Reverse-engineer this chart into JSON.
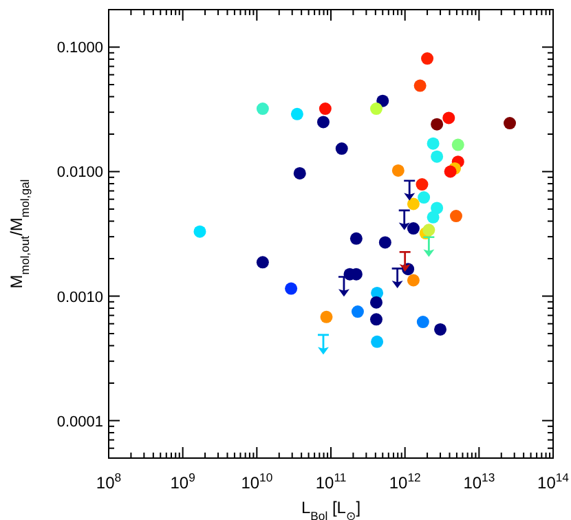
{
  "chart_data": {
    "type": "scatter",
    "xlabel": "L$_{Bol}$ [L$_{⊙}$]",
    "ylabel": "M$_{mol,out}$/M$_{mol,gal}$",
    "log": "xy",
    "xlim": [
      100000000.0,
      100000000000000.0
    ],
    "ylim": [
      5e-05,
      0.2
    ],
    "xticks": [
      {
        "value": 100000000.0,
        "label": "10$^{8}$"
      },
      {
        "value": 200000000.0,
        "label": null
      },
      {
        "value": 300000000.0,
        "label": null
      },
      {
        "value": 400000000.0,
        "label": null
      },
      {
        "value": 500000000.0,
        "label": null
      },
      {
        "value": 600000000.0,
        "label": null
      },
      {
        "value": 700000000.0,
        "label": null
      },
      {
        "value": 800000000.0,
        "label": null
      },
      {
        "value": 900000000.0,
        "label": null
      },
      {
        "value": 1000000000.0,
        "label": "10$^{9}$"
      },
      {
        "value": 2000000000.0,
        "label": null
      },
      {
        "value": 3000000000.0,
        "label": null
      },
      {
        "value": 4000000000.0,
        "label": null
      },
      {
        "value": 5000000000.0,
        "label": null
      },
      {
        "value": 6000000000.0,
        "label": null
      },
      {
        "value": 7000000000.0,
        "label": null
      },
      {
        "value": 8000000000.0,
        "label": null
      },
      {
        "value": 9000000000.0,
        "label": null
      },
      {
        "value": 10000000000.0,
        "label": "10$^{10}$"
      },
      {
        "value": 20000000000.0,
        "label": null
      },
      {
        "value": 30000000000.0,
        "label": null
      },
      {
        "value": 40000000000.0,
        "label": null
      },
      {
        "value": 50000000000.0,
        "label": null
      },
      {
        "value": 60000000000.0,
        "label": null
      },
      {
        "value": 70000000000.0,
        "label": null
      },
      {
        "value": 80000000000.0,
        "label": null
      },
      {
        "value": 90000000000.0,
        "label": null
      },
      {
        "value": 100000000000.0,
        "label": "10$^{11}$"
      },
      {
        "value": 200000000000.0,
        "label": null
      },
      {
        "value": 300000000000.0,
        "label": null
      },
      {
        "value": 400000000000.0,
        "label": null
      },
      {
        "value": 500000000000.0,
        "label": null
      },
      {
        "value": 600000000000.0,
        "label": null
      },
      {
        "value": 700000000000.0,
        "label": null
      },
      {
        "value": 800000000000.0,
        "label": null
      },
      {
        "value": 900000000000.0,
        "label": null
      },
      {
        "value": 1000000000000.0,
        "label": "10$^{12}$"
      },
      {
        "value": 2000000000000.0,
        "label": null
      },
      {
        "value": 3000000000000.0,
        "label": null
      },
      {
        "value": 4000000000000.0,
        "label": null
      },
      {
        "value": 5000000000000.0,
        "label": null
      },
      {
        "value": 6000000000000.0,
        "label": null
      },
      {
        "value": 7000000000000.0,
        "label": null
      },
      {
        "value": 8000000000000.0,
        "label": null
      },
      {
        "value": 9000000000000.0,
        "label": null
      },
      {
        "value": 10000000000000.0,
        "label": "10$^{13}$"
      },
      {
        "value": 20000000000000.0,
        "label": null
      },
      {
        "value": 30000000000000.0,
        "label": null
      },
      {
        "value": 40000000000000.0,
        "label": null
      },
      {
        "value": 50000000000000.0,
        "label": null
      },
      {
        "value": 60000000000000.0,
        "label": null
      },
      {
        "value": 70000000000000.0,
        "label": null
      },
      {
        "value": 80000000000000.0,
        "label": null
      },
      {
        "value": 90000000000000.0,
        "label": null
      },
      {
        "value": 100000000000000.0,
        "label": "10$^{14}$"
      }
    ],
    "yticks": [
      {
        "value": 5e-05,
        "label": null
      },
      {
        "value": 6e-05,
        "label": null
      },
      {
        "value": 7e-05,
        "label": null
      },
      {
        "value": 8e-05,
        "label": null
      },
      {
        "value": 9e-05,
        "label": null
      },
      {
        "value": 0.0001,
        "label": "0.0001"
      },
      {
        "value": 0.0002,
        "label": null
      },
      {
        "value": 0.0003,
        "label": null
      },
      {
        "value": 0.0004,
        "label": null
      },
      {
        "value": 0.0005,
        "label": null
      },
      {
        "value": 0.0006,
        "label": null
      },
      {
        "value": 0.0007,
        "label": null
      },
      {
        "value": 0.0008,
        "label": null
      },
      {
        "value": 0.0009,
        "label": null
      },
      {
        "value": 0.001,
        "label": "0.0010"
      },
      {
        "value": 0.002,
        "label": null
      },
      {
        "value": 0.003,
        "label": null
      },
      {
        "value": 0.004,
        "label": null
      },
      {
        "value": 0.005,
        "label": null
      },
      {
        "value": 0.006,
        "label": null
      },
      {
        "value": 0.007,
        "label": null
      },
      {
        "value": 0.008,
        "label": null
      },
      {
        "value": 0.009,
        "label": null
      },
      {
        "value": 0.01,
        "label": "0.0100"
      },
      {
        "value": 0.02,
        "label": null
      },
      {
        "value": 0.03,
        "label": null
      },
      {
        "value": 0.04,
        "label": null
      },
      {
        "value": 0.05,
        "label": null
      },
      {
        "value": 0.06,
        "label": null
      },
      {
        "value": 0.07,
        "label": null
      },
      {
        "value": 0.08,
        "label": null
      },
      {
        "value": 0.09,
        "label": null
      },
      {
        "value": 0.1,
        "label": "0.1000"
      },
      {
        "value": 0.2,
        "label": null
      }
    ],
    "series": [
      {
        "marker": "circle",
        "x": [
          12000000000.0,
          35000000000.0,
          84000000000.0,
          79000000000.0,
          38000000000.0,
          1700000000.0,
          2000000000000.0,
          1600000000000.0,
          500000000000.0,
          410000000000.0,
          3900000000000.0,
          2700000000000.0,
          26000000000000.0,
          140000000000.0,
          2400000000000.0,
          5200000000000.0,
          2700000000000.0,
          5200000000000.0,
          4700000000000.0,
          4100000000000.0,
          810000000000.0,
          1700000000000.0,
          1800000000000.0,
          1300000000000.0,
          2700000000000.0,
          2400000000000.0,
          4900000000000.0,
          1300000000000.0,
          1900000000000.0,
          2100000000000.0,
          220000000000.0,
          540000000000.0,
          12000000000.0,
          29000000000.0,
          87000000000.0,
          1100000000000.0,
          1300000000000.0,
          180000000000.0,
          220000000000.0,
          420000000000.0,
          410000000000.0,
          230000000000.0,
          410000000000.0,
          1750000000000.0,
          3000000000000.0,
          420000000000.0
        ],
        "values": [
          0.032,
          0.029,
          0.032,
          0.025,
          0.0097,
          0.0033,
          0.081,
          0.049,
          0.037,
          0.032,
          0.027,
          0.024,
          0.0245,
          0.0153,
          0.0168,
          0.0164,
          0.0132,
          0.012,
          0.0106,
          0.01,
          0.0102,
          0.0079,
          0.0062,
          0.0055,
          0.0051,
          0.0043,
          0.0044,
          0.0035,
          0.0032,
          0.0034,
          0.0029,
          0.0027,
          0.00187,
          0.00115,
          0.00068,
          0.00165,
          0.00134,
          0.0015,
          0.0015,
          0.00106,
          0.00089,
          0.00075,
          0.00065,
          0.00062,
          0.00054,
          0.00043
        ],
        "colors": [
          "#3cf0c8",
          "#00e0ff",
          "#ff1000",
          "#000080",
          "#000080",
          "#00e0ff",
          "#ff2000",
          "#ff4000",
          "#000080",
          "#c0ff40",
          "#ff1000",
          "#800000",
          "#800000",
          "#000080",
          "#20f0f0",
          "#80ff80",
          "#20f0f0",
          "#ff1000",
          "#ffc000",
          "#ff1000",
          "#ff8c00",
          "#ff2000",
          "#20f0f0",
          "#ffc800",
          "#20f0f0",
          "#20f0f0",
          "#ff6000",
          "#000080",
          "#ffd000",
          "#d0f040",
          "#000080",
          "#000080",
          "#000080",
          "#0030ff",
          "#ff9000",
          "#000080",
          "#ff8c00",
          "#000080",
          "#000080",
          "#00c0ff",
          "#000080",
          "#0080ff",
          "#000080",
          "#0080ff",
          "#000080",
          "#00c0ff"
        ]
      },
      {
        "marker": "triangle",
        "x": [
          1150000000000.0,
          980000000000.0,
          2100000000000.0,
          79000000000.0,
          1000000000000.0,
          150000000000.0,
          790000000000.0
        ],
        "values": [
          0.0071,
          0.0041,
          0.0025,
          0.00041,
          0.0019,
          0.0012,
          0.0014
        ],
        "colors": [
          "#000080",
          "#000080",
          "#40f0a0",
          "#00d0ff",
          "#c01010",
          "#000080",
          "#000080"
        ]
      }
    ]
  }
}
